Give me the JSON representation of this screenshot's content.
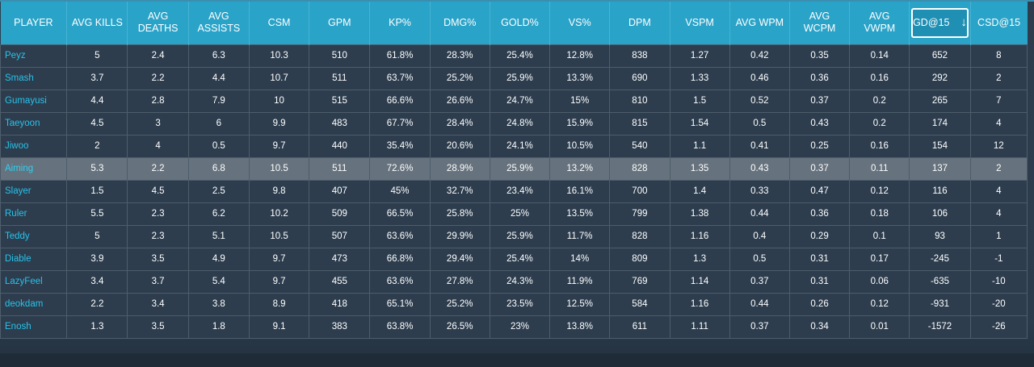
{
  "table": {
    "sorted_column_index": 15,
    "sort_direction_icon": "arrow-down-icon",
    "highlighted_row_index": 5,
    "colors": {
      "header_bg": "#2aa3c8",
      "row_bg": "#2d3d4e",
      "highlight_bg": "#66727d",
      "player_name": "#28c2e8",
      "text": "#ffffff"
    },
    "columns": [
      "PLAYER",
      "AVG KILLS",
      "AVG DEATHS",
      "AVG ASSISTS",
      "CSM",
      "GPM",
      "KP%",
      "DMG%",
      "GOLD%",
      "VS%",
      "DPM",
      "VSPM",
      "AVG WPM",
      "AVG WCPM",
      "AVG VWPM",
      "GD@15",
      "CSD@15"
    ],
    "rows": [
      [
        "Peyz",
        "5",
        "2.4",
        "6.3",
        "10.3",
        "510",
        "61.8%",
        "28.3%",
        "25.4%",
        "12.8%",
        "838",
        "1.27",
        "0.42",
        "0.35",
        "0.14",
        "652",
        "8"
      ],
      [
        "Smash",
        "3.7",
        "2.2",
        "4.4",
        "10.7",
        "511",
        "63.7%",
        "25.2%",
        "25.9%",
        "13.3%",
        "690",
        "1.33",
        "0.46",
        "0.36",
        "0.16",
        "292",
        "2"
      ],
      [
        "Gumayusi",
        "4.4",
        "2.8",
        "7.9",
        "10",
        "515",
        "66.6%",
        "26.6%",
        "24.7%",
        "15%",
        "810",
        "1.5",
        "0.52",
        "0.37",
        "0.2",
        "265",
        "7"
      ],
      [
        "Taeyoon",
        "4.5",
        "3",
        "6",
        "9.9",
        "483",
        "67.7%",
        "28.4%",
        "24.8%",
        "15.9%",
        "815",
        "1.54",
        "0.5",
        "0.43",
        "0.2",
        "174",
        "4"
      ],
      [
        "Jiwoo",
        "2",
        "4",
        "0.5",
        "9.7",
        "440",
        "35.4%",
        "20.6%",
        "24.1%",
        "10.5%",
        "540",
        "1.1",
        "0.41",
        "0.25",
        "0.16",
        "154",
        "12"
      ],
      [
        "Aiming",
        "5.3",
        "2.2",
        "6.8",
        "10.5",
        "511",
        "72.6%",
        "28.9%",
        "25.9%",
        "13.2%",
        "828",
        "1.35",
        "0.43",
        "0.37",
        "0.11",
        "137",
        "2"
      ],
      [
        "Slayer",
        "1.5",
        "4.5",
        "2.5",
        "9.8",
        "407",
        "45%",
        "32.7%",
        "23.4%",
        "16.1%",
        "700",
        "1.4",
        "0.33",
        "0.47",
        "0.12",
        "116",
        "4"
      ],
      [
        "Ruler",
        "5.5",
        "2.3",
        "6.2",
        "10.2",
        "509",
        "66.5%",
        "25.8%",
        "25%",
        "13.5%",
        "799",
        "1.38",
        "0.44",
        "0.36",
        "0.18",
        "106",
        "4"
      ],
      [
        "Teddy",
        "5",
        "2.3",
        "5.1",
        "10.5",
        "507",
        "63.6%",
        "29.9%",
        "25.9%",
        "11.7%",
        "828",
        "1.16",
        "0.4",
        "0.29",
        "0.1",
        "93",
        "1"
      ],
      [
        "Diable",
        "3.9",
        "3.5",
        "4.9",
        "9.7",
        "473",
        "66.8%",
        "29.4%",
        "25.4%",
        "14%",
        "809",
        "1.3",
        "0.5",
        "0.31",
        "0.17",
        "-245",
        "-1"
      ],
      [
        "LazyFeel",
        "3.4",
        "3.7",
        "5.4",
        "9.7",
        "455",
        "63.6%",
        "27.8%",
        "24.3%",
        "11.9%",
        "769",
        "1.14",
        "0.37",
        "0.31",
        "0.06",
        "-635",
        "-10"
      ],
      [
        "deokdam",
        "2.2",
        "3.4",
        "3.8",
        "8.9",
        "418",
        "65.1%",
        "25.2%",
        "23.5%",
        "12.5%",
        "584",
        "1.16",
        "0.44",
        "0.26",
        "0.12",
        "-931",
        "-20"
      ],
      [
        "Enosh",
        "1.3",
        "3.5",
        "1.8",
        "9.1",
        "383",
        "63.8%",
        "26.5%",
        "23%",
        "13.8%",
        "611",
        "1.11",
        "0.37",
        "0.34",
        "0.01",
        "-1572",
        "-26"
      ]
    ]
  }
}
